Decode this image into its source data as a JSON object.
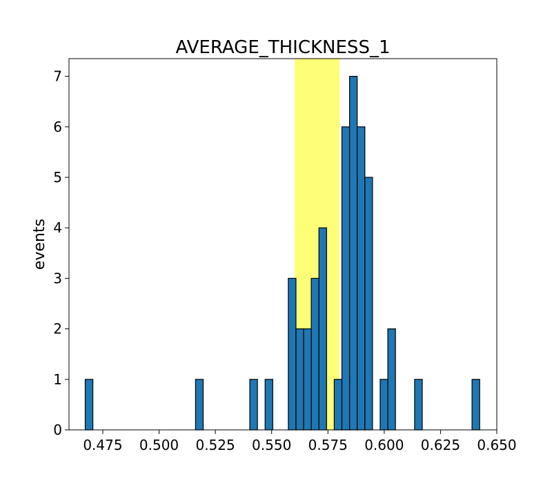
{
  "chart_data": {
    "type": "bar",
    "title": "AVERAGE_THICKNESS_1",
    "xlabel": "",
    "ylabel": "events",
    "xlim": [
      0.46,
      0.65
    ],
    "ylim": [
      0,
      7.35
    ],
    "x_ticks": [
      0.475,
      0.5,
      0.525,
      0.55,
      0.575,
      0.6,
      0.625,
      0.65
    ],
    "x_tick_labels": [
      "0.475",
      "0.500",
      "0.525",
      "0.550",
      "0.575",
      "0.600",
      "0.625",
      "0.650"
    ],
    "y_ticks": [
      0,
      1,
      2,
      3,
      4,
      5,
      6,
      7
    ],
    "y_tick_labels": [
      "0",
      "1",
      "2",
      "3",
      "4",
      "5",
      "6",
      "7"
    ],
    "band": {
      "x_start": 0.5602,
      "x_end": 0.5802,
      "color": "#ffff77"
    },
    "bin_width": 0.0034,
    "bins": [
      {
        "x": 0.4672,
        "count": 1
      },
      {
        "x": 0.5162,
        "count": 1
      },
      {
        "x": 0.5403,
        "count": 1
      },
      {
        "x": 0.5471,
        "count": 1
      },
      {
        "x": 0.5574,
        "count": 3
      },
      {
        "x": 0.5608,
        "count": 2
      },
      {
        "x": 0.5642,
        "count": 2
      },
      {
        "x": 0.5676,
        "count": 3
      },
      {
        "x": 0.571,
        "count": 4
      },
      {
        "x": 0.5778,
        "count": 1
      },
      {
        "x": 0.5812,
        "count": 6
      },
      {
        "x": 0.5846,
        "count": 7
      },
      {
        "x": 0.588,
        "count": 6
      },
      {
        "x": 0.5914,
        "count": 5
      },
      {
        "x": 0.5982,
        "count": 1
      },
      {
        "x": 0.6016,
        "count": 2
      },
      {
        "x": 0.6135,
        "count": 1
      },
      {
        "x": 0.639,
        "count": 1
      }
    ],
    "bar_color": "#1f77b4",
    "edge_color": "#000000",
    "grid": false,
    "legend": "none"
  }
}
